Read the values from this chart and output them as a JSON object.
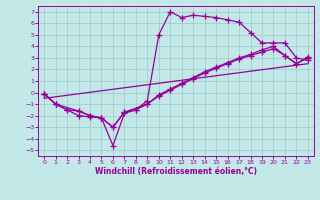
{
  "xlabel": "Windchill (Refroidissement éolien,°C)",
  "bg_color": "#c2e8e8",
  "line_color": "#990099",
  "grid_color": "#a0c8c8",
  "xlim": [
    -0.5,
    23.5
  ],
  "ylim": [
    -5.5,
    7.5
  ],
  "xticks": [
    0,
    1,
    2,
    3,
    4,
    5,
    6,
    7,
    8,
    9,
    10,
    11,
    12,
    13,
    14,
    15,
    16,
    17,
    18,
    19,
    20,
    21,
    22,
    23
  ],
  "yticks": [
    -5,
    -4,
    -3,
    -2,
    -1,
    0,
    1,
    2,
    3,
    4,
    5,
    6,
    7
  ],
  "line1_x": [
    0,
    1,
    2,
    3,
    4,
    5,
    6,
    7,
    8,
    9,
    10,
    11,
    12,
    13,
    14,
    15,
    16,
    17,
    18,
    19,
    20,
    21,
    22,
    23
  ],
  "line1_y": [
    -0.1,
    -1.0,
    -1.5,
    -2.0,
    -2.1,
    -2.2,
    -4.6,
    -1.8,
    -1.5,
    -0.7,
    5.0,
    7.0,
    6.5,
    6.7,
    6.6,
    6.5,
    6.3,
    6.1,
    5.2,
    4.3,
    4.3,
    4.3,
    3.0,
    2.8
  ],
  "line2_x": [
    0,
    1,
    3,
    4,
    5,
    6,
    7,
    9,
    10,
    11,
    12,
    13,
    14,
    15,
    16,
    17,
    18,
    19,
    20,
    21,
    22,
    23
  ],
  "line2_y": [
    -0.1,
    -1.0,
    -1.6,
    -2.0,
    -2.2,
    -3.0,
    -1.7,
    -1.0,
    -0.2,
    0.3,
    0.8,
    1.3,
    1.8,
    2.2,
    2.6,
    3.0,
    3.3,
    3.7,
    4.0,
    3.2,
    2.5,
    3.1
  ],
  "line3_x": [
    0,
    1,
    2,
    3,
    4,
    5,
    6,
    7,
    8,
    9,
    10,
    11,
    12,
    13,
    14,
    15,
    16,
    17,
    18,
    19,
    20,
    21,
    22,
    23
  ],
  "line3_y": [
    -0.1,
    -1.0,
    -1.5,
    -1.6,
    -2.0,
    -2.2,
    -3.0,
    -1.7,
    -1.5,
    -1.0,
    -0.3,
    0.2,
    0.7,
    1.2,
    1.7,
    2.1,
    2.5,
    2.9,
    3.2,
    3.5,
    3.8,
    3.2,
    2.5,
    3.0
  ],
  "line4_x": [
    0,
    23
  ],
  "line4_y": [
    -0.5,
    2.5
  ]
}
